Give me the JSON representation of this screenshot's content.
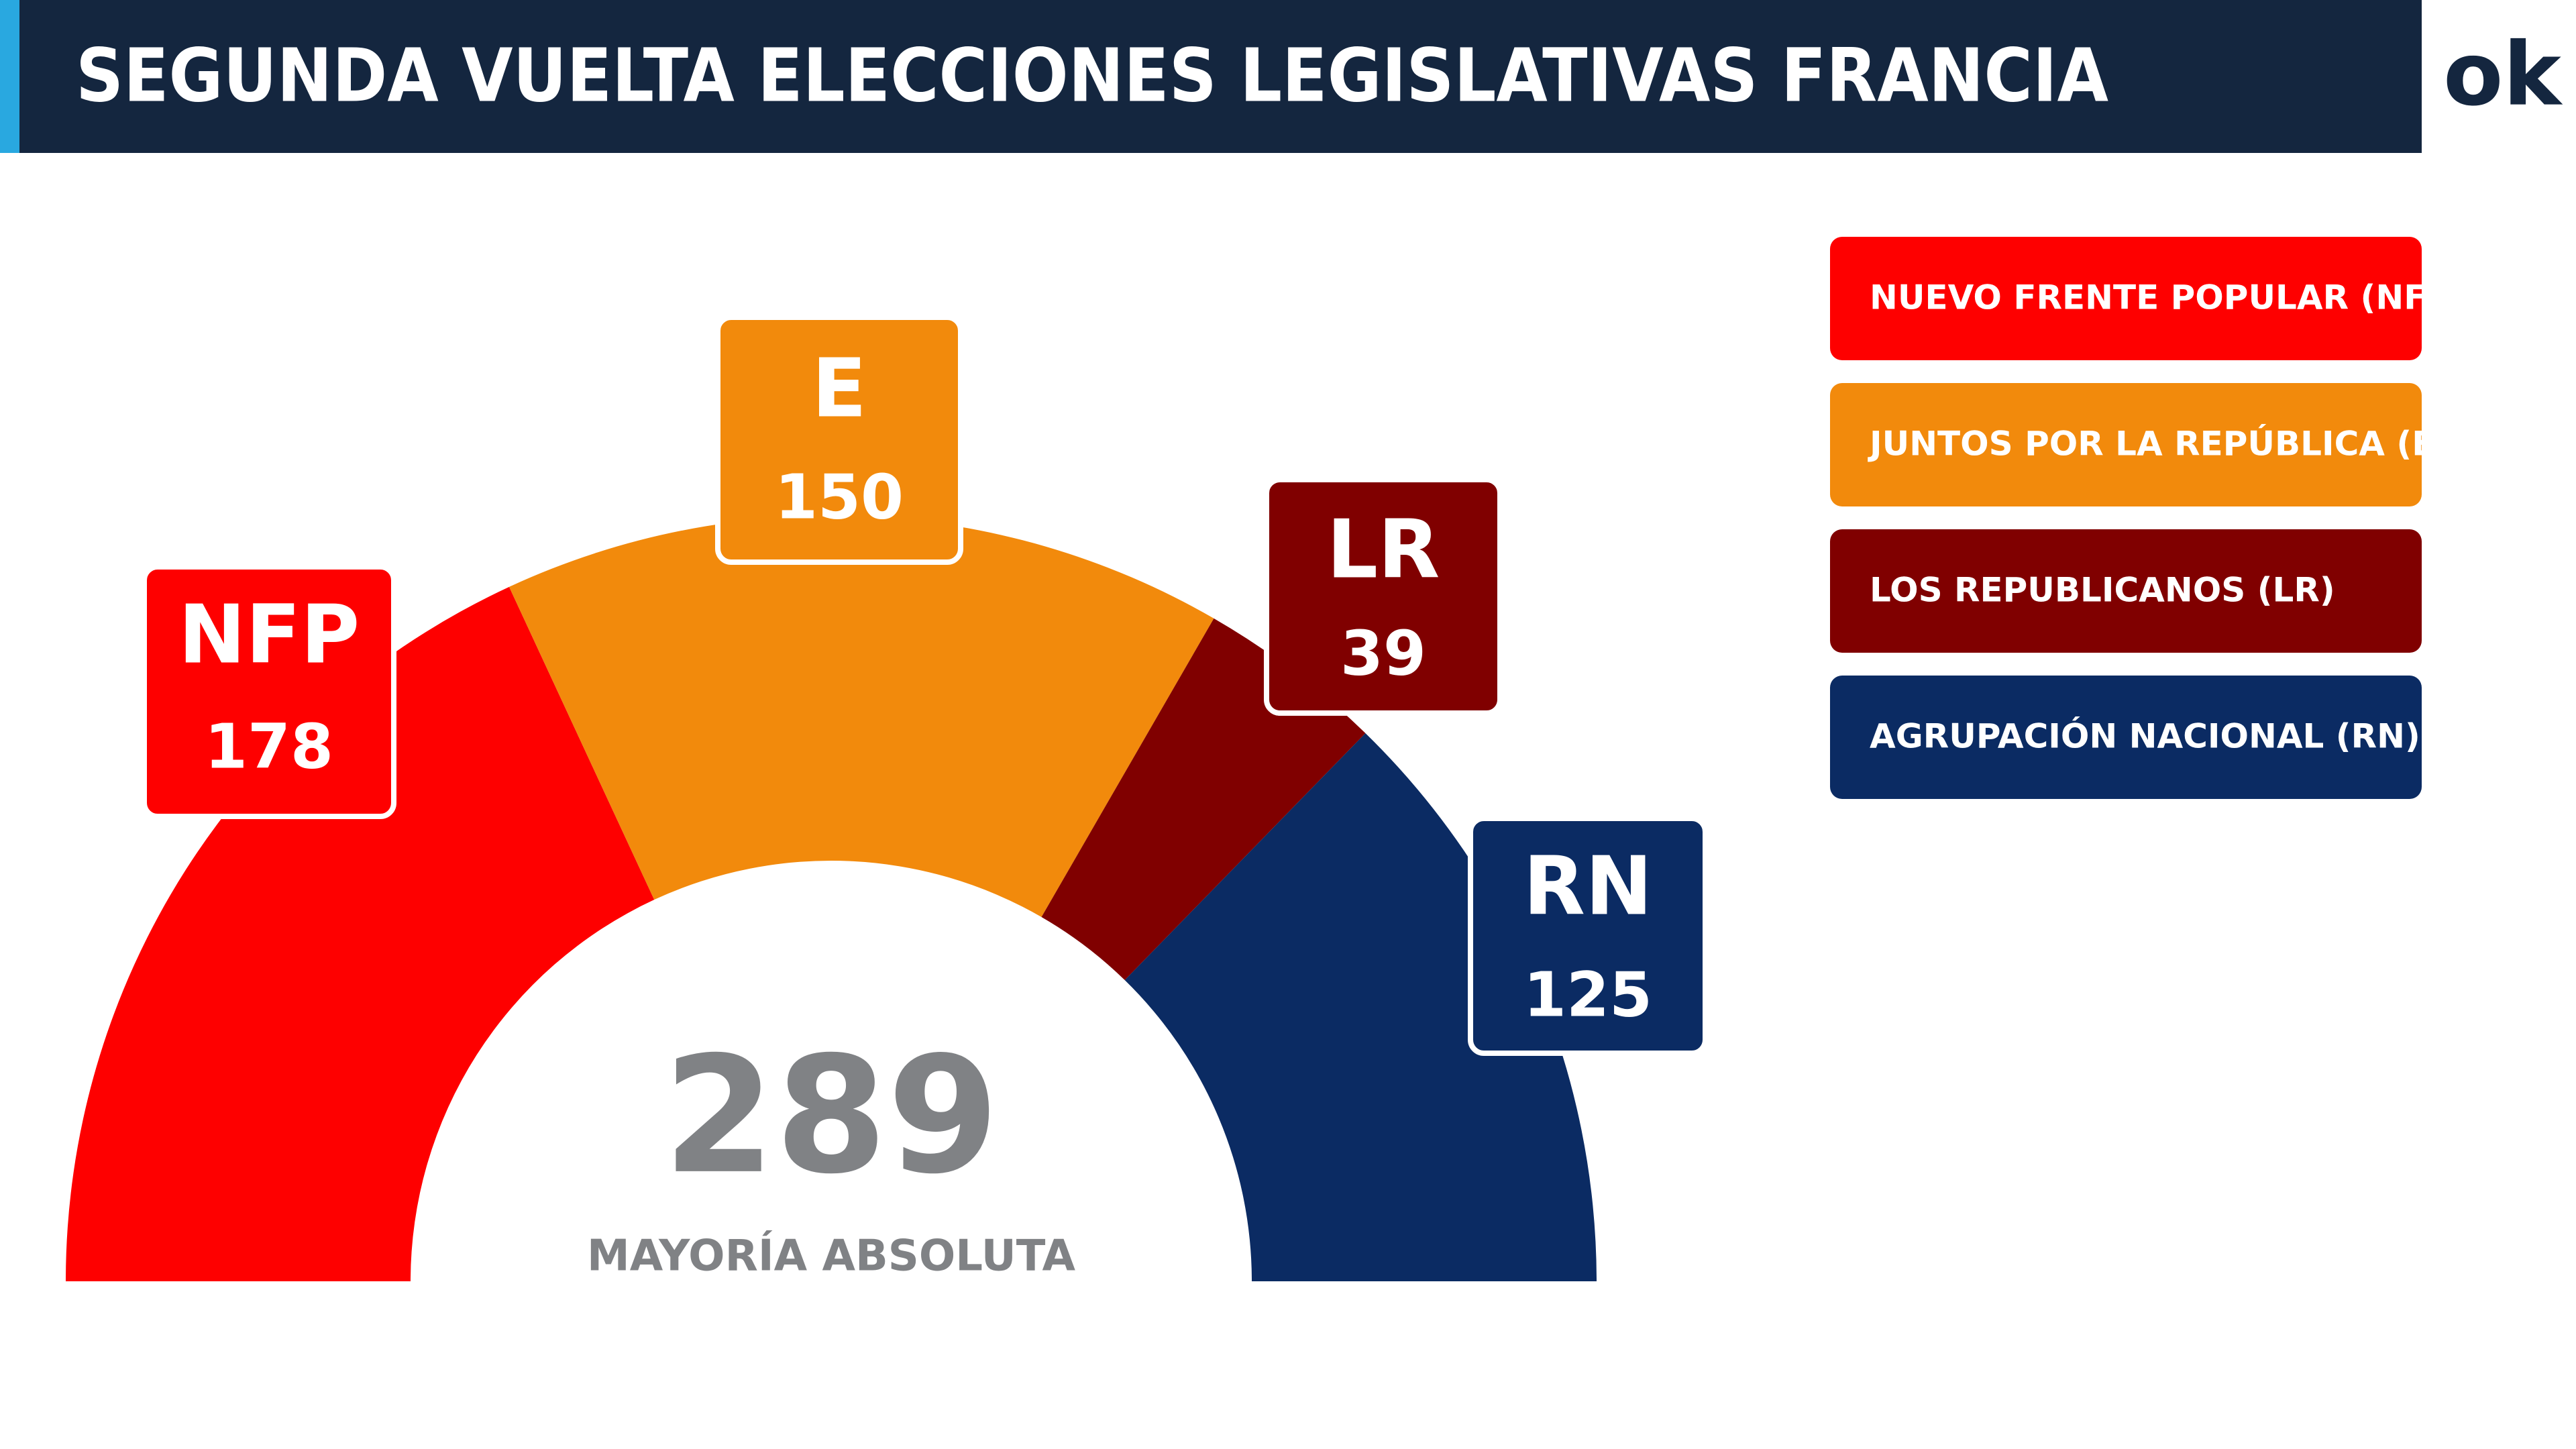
{
  "chart_data": {
    "type": "donut",
    "title": "SEGUNDA VUELTA ELECCIONES LEGISLATIVAS FRANCIA",
    "logo": "ok",
    "categories": [
      "NFP",
      "E",
      "LR",
      "RN"
    ],
    "values": [
      178,
      150,
      39,
      125
    ],
    "colors": [
      "#fe0000",
      "#f28a0c",
      "#800000",
      "#0b2b63"
    ],
    "legend": [
      "NUEVO FRENTE POPULAR (NFP)",
      "JUNTOS POR LA REPÚBLICA (E)",
      "LOS REPUBLICANOS (LR)",
      "AGRUPACIÓN NACIONAL (RN)"
    ],
    "center_value": 289,
    "center_label": "MAYORÍA ABSOLUTA"
  }
}
